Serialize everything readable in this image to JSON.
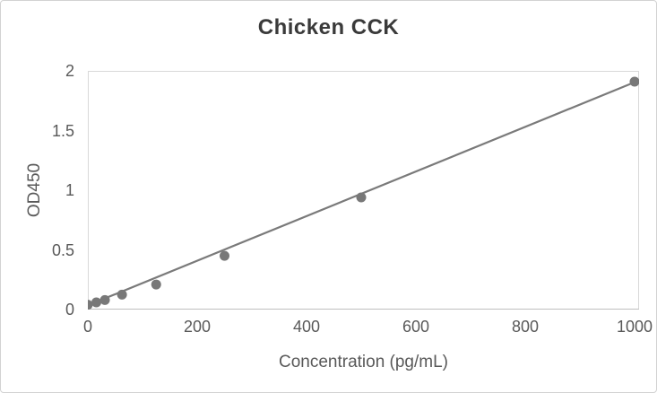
{
  "chart_data": {
    "type": "scatter",
    "title": "Chicken CCK",
    "xlabel": "Concentration (pg/mL)",
    "ylabel": "OD450",
    "xlim": [
      0,
      1000
    ],
    "ylim": [
      0,
      2
    ],
    "xticks": [
      0,
      200,
      400,
      600,
      800,
      1000
    ],
    "yticks": [
      0,
      0.5,
      1,
      1.5,
      2
    ],
    "grid": false,
    "legend": "none",
    "points": [
      {
        "x": 0,
        "y": 0.04
      },
      {
        "x": 15.6,
        "y": 0.06
      },
      {
        "x": 31.2,
        "y": 0.08
      },
      {
        "x": 62.5,
        "y": 0.125
      },
      {
        "x": 125,
        "y": 0.21
      },
      {
        "x": 250,
        "y": 0.45
      },
      {
        "x": 500,
        "y": 0.94
      },
      {
        "x": 1000,
        "y": 1.91
      }
    ],
    "trendline": {
      "type": "linear",
      "x1": 0,
      "y1": 0.035,
      "x2": 1000,
      "y2": 1.905
    },
    "colors": {
      "point": "#787878",
      "line": "#7a7a7a",
      "frame": "#d9d9d9",
      "axis": "#bfbfbf",
      "tick_label": "#595959",
      "axis_title": "#595959",
      "title": "#3a3a3a",
      "background": "#ffffff"
    }
  }
}
